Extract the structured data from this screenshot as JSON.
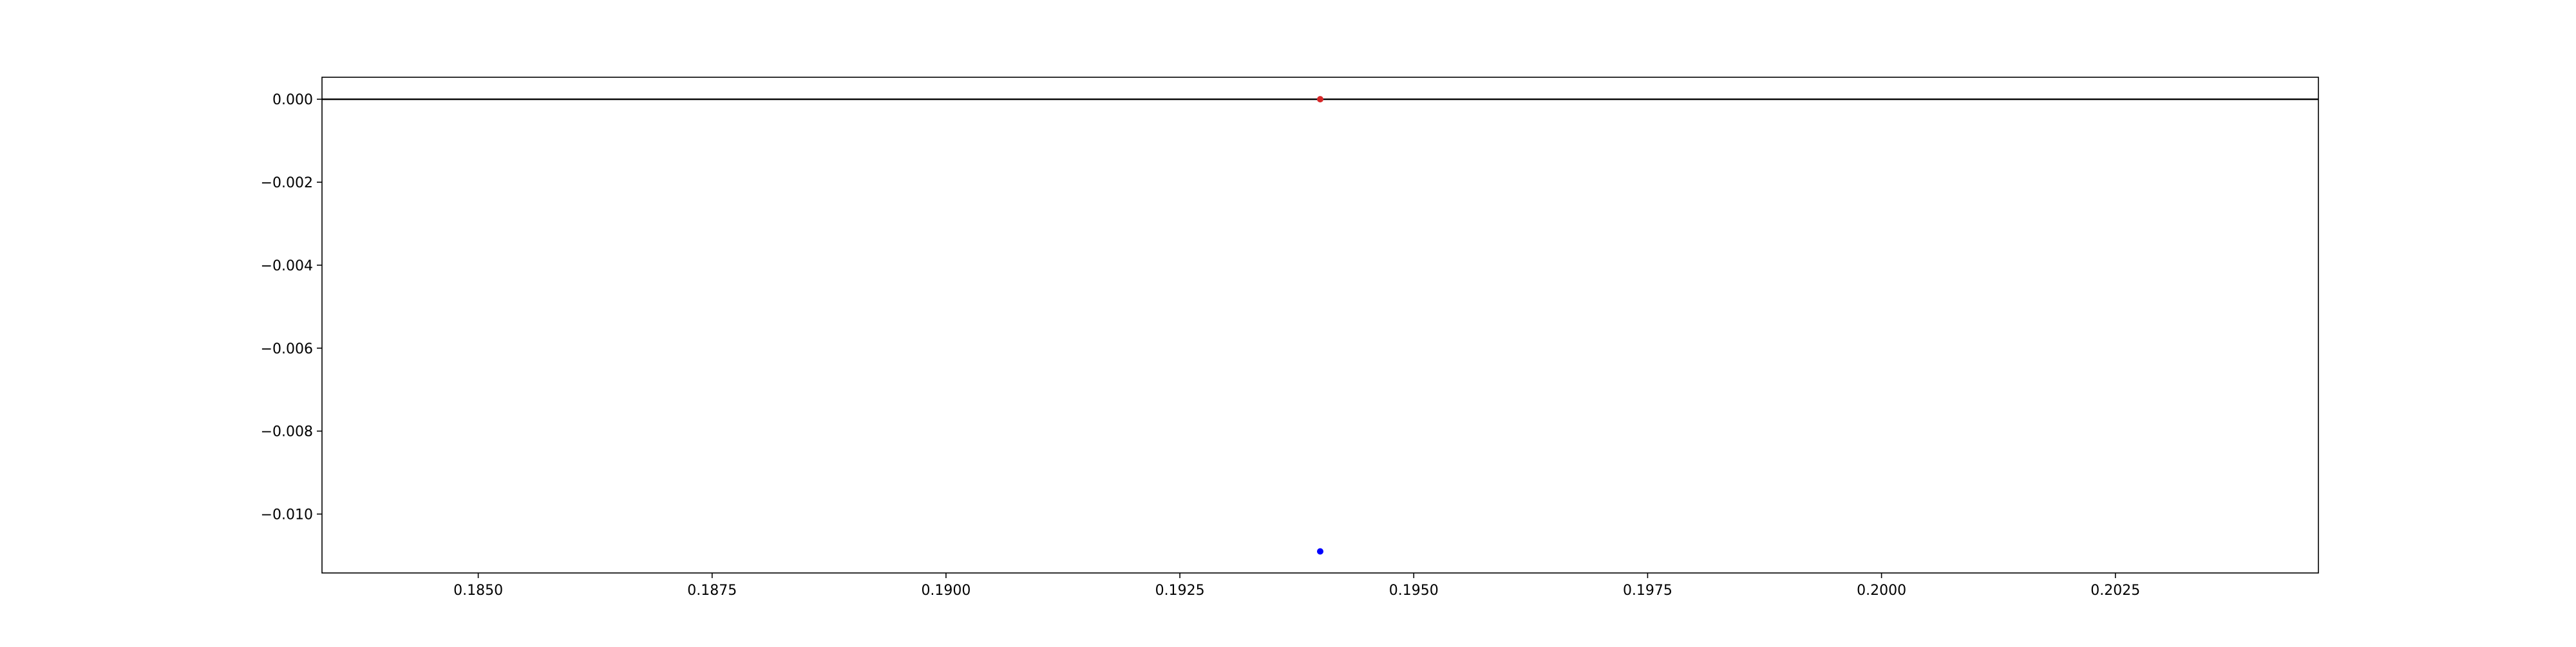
{
  "chart_data": {
    "type": "scatter",
    "title": "",
    "xlabel": "",
    "ylabel": "",
    "xlim": [
      0.18333,
      0.20467
    ],
    "ylim": [
      -0.01142,
      0.00053
    ],
    "x_ticks": [
      0.185,
      0.1875,
      0.19,
      0.1925,
      0.195,
      0.1975,
      0.2,
      0.2025
    ],
    "x_tick_labels": [
      "0.1850",
      "0.1875",
      "0.1900",
      "0.1925",
      "0.1950",
      "0.1975",
      "0.2000",
      "0.2025"
    ],
    "y_ticks": [
      0.0,
      -0.002,
      -0.004,
      -0.006,
      -0.008,
      -0.01
    ],
    "y_tick_labels": [
      "0.000",
      "−0.002",
      "−0.004",
      "−0.006",
      "−0.008",
      "−0.010"
    ],
    "grid": false,
    "reference_line": {
      "y": 0.0,
      "color": "#000000"
    },
    "series": [
      {
        "color": "#d62728",
        "points": [
          {
            "x": 0.194,
            "y": 0.0
          }
        ]
      },
      {
        "color": "#0000ff",
        "points": [
          {
            "x": 0.194,
            "y": -0.0109
          }
        ]
      }
    ]
  }
}
